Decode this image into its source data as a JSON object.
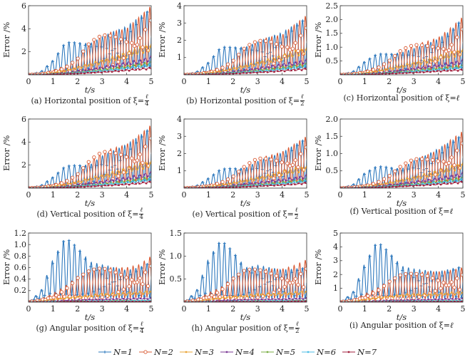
{
  "chart_data": [
    {
      "type": "line",
      "panel": "a",
      "caption": {
        "prefix": "(a) Horizontal position of ξ=",
        "num": "ℓ",
        "den": "4"
      },
      "xlabel": "t/s",
      "ylabel": "Error /%",
      "xlim": [
        0,
        5
      ],
      "ylim": [
        0,
        6
      ],
      "xticks": [
        "0",
        "1",
        "2",
        "3",
        "4",
        "5"
      ],
      "yticks": [
        2,
        4,
        6
      ],
      "x": [
        0,
        0.5,
        1,
        1.5,
        2,
        2.5,
        3,
        3.5,
        4,
        4.5,
        5
      ],
      "series": [
        [
          0,
          0.3,
          1.3,
          2.8,
          2.8,
          2.7,
          3.3,
          3.8,
          4.2,
          5.0,
          5.8
        ],
        [
          0,
          0.1,
          0.4,
          0.8,
          1.5,
          2.8,
          3.5,
          3.8,
          4.0,
          5.0,
          6.0
        ],
        [
          0,
          0.05,
          0.2,
          0.4,
          0.7,
          1.0,
          1.3,
          1.6,
          2.0,
          2.4,
          2.7
        ],
        [
          0,
          0.03,
          0.1,
          0.2,
          0.35,
          0.5,
          0.7,
          0.9,
          1.1,
          1.3,
          1.6
        ],
        [
          0,
          0.02,
          0.07,
          0.15,
          0.25,
          0.35,
          0.5,
          0.6,
          0.8,
          0.95,
          1.15
        ],
        [
          0,
          0.02,
          0.06,
          0.12,
          0.2,
          0.3,
          0.4,
          0.5,
          0.65,
          0.8,
          0.95
        ],
        [
          0,
          0.01,
          0.04,
          0.08,
          0.13,
          0.2,
          0.27,
          0.35,
          0.45,
          0.55,
          0.65
        ]
      ]
    },
    {
      "type": "line",
      "panel": "b",
      "caption": {
        "prefix": "(b) Horizontal position of ξ=",
        "num": "ℓ",
        "den": "2"
      },
      "xlabel": "t/s",
      "ylabel": "Error /%",
      "xlim": [
        0,
        5
      ],
      "ylim": [
        0,
        4
      ],
      "xticks": [
        "0",
        "1",
        "2",
        "3",
        "4",
        "5"
      ],
      "yticks": [
        1,
        2,
        3,
        4
      ],
      "x": [
        0,
        0.5,
        1,
        1.5,
        2,
        2.5,
        3,
        3.5,
        4,
        4.5,
        5
      ],
      "series": [
        [
          0,
          0.18,
          0.75,
          1.6,
          1.6,
          1.6,
          1.9,
          2.2,
          2.45,
          2.9,
          3.3
        ],
        [
          0,
          0.06,
          0.23,
          0.46,
          0.87,
          1.6,
          2.0,
          2.2,
          2.3,
          2.9,
          3.45
        ],
        [
          0,
          0.03,
          0.12,
          0.23,
          0.4,
          0.58,
          0.75,
          0.93,
          1.16,
          1.4,
          1.6
        ],
        [
          0,
          0.02,
          0.06,
          0.12,
          0.2,
          0.29,
          0.4,
          0.52,
          0.64,
          0.75,
          0.9
        ],
        [
          0,
          0.01,
          0.04,
          0.09,
          0.15,
          0.2,
          0.29,
          0.35,
          0.46,
          0.55,
          0.67
        ],
        [
          0,
          0.01,
          0.03,
          0.07,
          0.12,
          0.17,
          0.23,
          0.29,
          0.38,
          0.46,
          0.55
        ],
        [
          0,
          0.01,
          0.02,
          0.05,
          0.08,
          0.12,
          0.16,
          0.2,
          0.26,
          0.32,
          0.38
        ]
      ]
    },
    {
      "type": "line",
      "panel": "c",
      "caption": {
        "prefix": "(c) Horizontal position of ξ=",
        "num": "ℓ",
        "den": ""
      },
      "xlabel": "t/s",
      "ylabel": "Error /%",
      "xlim": [
        0,
        5
      ],
      "ylim": [
        0,
        2.5
      ],
      "xticks": [
        "0",
        "1",
        "2",
        "3",
        "4",
        "5"
      ],
      "yticks": [
        0.5,
        1.0,
        1.5,
        2.0,
        2.5
      ],
      "x": [
        0,
        0.5,
        1,
        1.5,
        2,
        2.5,
        3,
        3.5,
        4,
        4.5,
        5
      ],
      "series": [
        [
          0,
          0.12,
          0.5,
          0.75,
          0.75,
          0.8,
          0.95,
          1.1,
          1.3,
          1.6,
          2.05
        ],
        [
          0,
          0.04,
          0.15,
          0.3,
          0.55,
          0.9,
          1.1,
          1.2,
          1.35,
          1.7,
          2.1
        ],
        [
          0,
          0.02,
          0.07,
          0.15,
          0.25,
          0.35,
          0.45,
          0.55,
          0.7,
          0.82,
          0.95
        ],
        [
          0,
          0.01,
          0.04,
          0.07,
          0.12,
          0.18,
          0.25,
          0.31,
          0.38,
          0.45,
          0.55
        ],
        [
          0,
          0.01,
          0.03,
          0.05,
          0.09,
          0.12,
          0.17,
          0.21,
          0.26,
          0.3,
          0.35
        ],
        [
          0,
          0.01,
          0.02,
          0.04,
          0.07,
          0.1,
          0.14,
          0.18,
          0.22,
          0.26,
          0.3
        ],
        [
          0,
          0.0,
          0.01,
          0.03,
          0.05,
          0.07,
          0.09,
          0.12,
          0.15,
          0.18,
          0.2
        ]
      ]
    },
    {
      "type": "line",
      "panel": "d",
      "caption": {
        "prefix": "(d) Vertical position of ξ=",
        "num": "ℓ",
        "den": "4"
      },
      "xlabel": "t/s",
      "ylabel": "Error /%",
      "xlim": [
        0,
        5
      ],
      "ylim": [
        0,
        6
      ],
      "xticks": [
        "0",
        "1",
        "2",
        "3",
        "4",
        "5"
      ],
      "yticks": [
        2,
        4,
        6
      ],
      "x": [
        0,
        0.5,
        1,
        1.5,
        2,
        2.5,
        3,
        3.5,
        4,
        4.5,
        5
      ],
      "series": [
        [
          0,
          0.25,
          1.0,
          1.9,
          2.0,
          2.0,
          2.8,
          3.3,
          3.8,
          4.5,
          5.3
        ],
        [
          0,
          0.08,
          0.35,
          0.7,
          1.3,
          2.4,
          3.2,
          3.5,
          3.8,
          4.6,
          5.5
        ],
        [
          0,
          0.04,
          0.17,
          0.35,
          0.6,
          0.9,
          1.15,
          1.45,
          1.8,
          2.1,
          2.4
        ],
        [
          0,
          0.03,
          0.09,
          0.18,
          0.3,
          0.45,
          0.6,
          0.8,
          0.95,
          1.15,
          1.4
        ],
        [
          0,
          0.02,
          0.06,
          0.13,
          0.22,
          0.3,
          0.42,
          0.52,
          0.68,
          0.82,
          1.0
        ],
        [
          0,
          0.02,
          0.05,
          0.1,
          0.17,
          0.26,
          0.35,
          0.44,
          0.56,
          0.7,
          0.85
        ],
        [
          0,
          0.01,
          0.03,
          0.07,
          0.11,
          0.17,
          0.23,
          0.3,
          0.38,
          0.47,
          0.6
        ]
      ]
    },
    {
      "type": "line",
      "panel": "e",
      "caption": {
        "prefix": "(e) Vertical position of ξ=",
        "num": "ℓ",
        "den": "2"
      },
      "xlabel": "t/s",
      "ylabel": "Error /%",
      "xlim": [
        0,
        5
      ],
      "ylim": [
        0,
        4
      ],
      "xticks": [
        "0",
        "1",
        "2",
        "3",
        "4",
        "5"
      ],
      "yticks": [
        1,
        2,
        3,
        4
      ],
      "x": [
        0,
        0.5,
        1,
        1.5,
        2,
        2.5,
        3,
        3.5,
        4,
        4.5,
        5
      ],
      "series": [
        [
          0,
          0.15,
          0.6,
          1.1,
          1.15,
          1.15,
          1.55,
          1.8,
          2.05,
          2.5,
          2.9
        ],
        [
          0,
          0.05,
          0.2,
          0.4,
          0.72,
          1.3,
          1.75,
          1.9,
          2.1,
          2.55,
          3.0
        ],
        [
          0,
          0.02,
          0.1,
          0.2,
          0.33,
          0.5,
          0.63,
          0.8,
          1.0,
          1.15,
          1.3
        ],
        [
          0,
          0.02,
          0.05,
          0.1,
          0.17,
          0.25,
          0.33,
          0.44,
          0.52,
          0.63,
          0.77
        ],
        [
          0,
          0.01,
          0.03,
          0.07,
          0.12,
          0.17,
          0.23,
          0.29,
          0.37,
          0.45,
          0.55
        ],
        [
          0,
          0.01,
          0.03,
          0.06,
          0.09,
          0.14,
          0.19,
          0.24,
          0.31,
          0.38,
          0.47
        ],
        [
          0,
          0.01,
          0.02,
          0.04,
          0.06,
          0.09,
          0.13,
          0.17,
          0.21,
          0.26,
          0.33
        ]
      ]
    },
    {
      "type": "line",
      "panel": "f",
      "caption": {
        "prefix": "(f) Vertical position of ξ=",
        "num": "ℓ",
        "den": ""
      },
      "xlabel": "t/s",
      "ylabel": "Error /%",
      "xlim": [
        0,
        5
      ],
      "ylim": [
        0,
        2.0
      ],
      "xticks": [
        "0",
        "1",
        "2",
        "3",
        "4",
        "5"
      ],
      "yticks": [
        0.5,
        1.0,
        1.5,
        2.0
      ],
      "x": [
        0,
        0.5,
        1,
        1.5,
        2,
        2.5,
        3,
        3.5,
        4,
        4.5,
        5
      ],
      "series": [
        [
          0,
          0.1,
          0.45,
          0.63,
          0.6,
          0.55,
          0.8,
          0.95,
          1.15,
          1.35,
          1.55
        ],
        [
          0,
          0.03,
          0.1,
          0.2,
          0.38,
          0.65,
          0.85,
          0.95,
          1.1,
          1.4,
          1.65
        ],
        [
          0,
          0.01,
          0.05,
          0.1,
          0.17,
          0.26,
          0.33,
          0.42,
          0.52,
          0.63,
          0.75
        ],
        [
          0,
          0.01,
          0.03,
          0.06,
          0.1,
          0.14,
          0.19,
          0.24,
          0.3,
          0.37,
          0.45
        ],
        [
          0,
          0.0,
          0.02,
          0.04,
          0.07,
          0.1,
          0.13,
          0.17,
          0.21,
          0.26,
          0.32
        ],
        [
          0,
          0.0,
          0.02,
          0.03,
          0.06,
          0.08,
          0.11,
          0.14,
          0.18,
          0.22,
          0.27
        ],
        [
          0,
          0.0,
          0.01,
          0.02,
          0.04,
          0.06,
          0.08,
          0.1,
          0.13,
          0.16,
          0.2
        ]
      ]
    },
    {
      "type": "line",
      "panel": "g",
      "caption": {
        "prefix": "(g) Angular position of ξ=",
        "num": "ℓ",
        "den": "4"
      },
      "xlabel": "t/s",
      "ylabel": "Error /%",
      "xlim": [
        0,
        5
      ],
      "ylim": [
        0,
        1.2
      ],
      "xticks": [
        "0",
        "1",
        "2",
        "3",
        "4",
        "5"
      ],
      "yticks": [
        0.2,
        0.4,
        0.6,
        0.8,
        1.0,
        1.2
      ],
      "x": [
        0,
        0.5,
        1,
        1.5,
        2,
        2.5,
        3,
        3.5,
        4,
        4.5,
        5
      ],
      "series": [
        [
          0,
          0.2,
          0.75,
          1.12,
          0.95,
          0.7,
          0.65,
          0.6,
          0.55,
          0.6,
          0.7
        ],
        [
          0,
          0.05,
          0.15,
          0.28,
          0.45,
          0.55,
          0.6,
          0.6,
          0.6,
          0.65,
          0.8
        ],
        [
          0,
          0.02,
          0.05,
          0.08,
          0.1,
          0.12,
          0.15,
          0.15,
          0.17,
          0.18,
          0.2
        ],
        [
          0,
          0.01,
          0.02,
          0.03,
          0.04,
          0.05,
          0.05,
          0.06,
          0.06,
          0.07,
          0.07
        ],
        [
          0,
          0.0,
          0.01,
          0.01,
          0.02,
          0.02,
          0.02,
          0.03,
          0.03,
          0.03,
          0.03
        ],
        [
          0,
          0.0,
          0.01,
          0.01,
          0.01,
          0.02,
          0.02,
          0.02,
          0.02,
          0.03,
          0.03
        ],
        [
          0,
          0.0,
          0.0,
          0.01,
          0.01,
          0.01,
          0.01,
          0.01,
          0.01,
          0.01,
          0.01
        ]
      ]
    },
    {
      "type": "line",
      "panel": "h",
      "caption": {
        "prefix": "(h) Angular position of ξ=",
        "num": "ℓ",
        "den": "2"
      },
      "xlabel": "t/s",
      "ylabel": "Error /%",
      "xlim": [
        0,
        5
      ],
      "ylim": [
        0,
        1.5
      ],
      "xticks": [
        "0",
        "1",
        "2",
        "3",
        "4",
        "5"
      ],
      "yticks": [
        0.5,
        1.0,
        1.5
      ],
      "x": [
        0,
        0.5,
        1,
        1.5,
        2,
        2.5,
        3,
        3.5,
        4,
        4.5,
        5
      ],
      "series": [
        [
          0,
          0.25,
          0.95,
          1.35,
          1.1,
          0.75,
          0.8,
          0.75,
          0.7,
          0.72,
          0.75
        ],
        [
          0,
          0.06,
          0.2,
          0.32,
          0.55,
          0.7,
          0.72,
          0.72,
          0.72,
          0.8,
          0.92
        ],
        [
          0,
          0.02,
          0.06,
          0.1,
          0.13,
          0.15,
          0.18,
          0.19,
          0.2,
          0.22,
          0.25
        ],
        [
          0,
          0.01,
          0.02,
          0.04,
          0.05,
          0.06,
          0.06,
          0.07,
          0.07,
          0.08,
          0.09
        ],
        [
          0,
          0.0,
          0.01,
          0.01,
          0.02,
          0.02,
          0.03,
          0.03,
          0.03,
          0.04,
          0.04
        ],
        [
          0,
          0.0,
          0.01,
          0.01,
          0.02,
          0.02,
          0.02,
          0.03,
          0.03,
          0.03,
          0.03
        ],
        [
          0,
          0.0,
          0.0,
          0.01,
          0.01,
          0.01,
          0.01,
          0.01,
          0.01,
          0.02,
          0.02
        ]
      ]
    },
    {
      "type": "line",
      "panel": "i",
      "caption": {
        "prefix": "(i) Angular position of ξ=",
        "num": "ℓ",
        "den": ""
      },
      "xlabel": "t/s",
      "ylabel": "Error /%",
      "xlim": [
        0,
        5
      ],
      "ylim": [
        0,
        5
      ],
      "xticks": [
        "0",
        "1",
        "2",
        "3",
        "4",
        "5"
      ],
      "yticks": [
        1,
        2,
        3,
        4,
        5
      ],
      "x": [
        0,
        0.5,
        1,
        1.5,
        2,
        2.5,
        3,
        3.5,
        4,
        4.5,
        5
      ],
      "series": [
        [
          0,
          0.7,
          2.8,
          4.4,
          3.6,
          2.6,
          2.4,
          2.3,
          2.2,
          2.4,
          2.6
        ],
        [
          0,
          0.15,
          0.6,
          1.0,
          1.6,
          2.0,
          2.1,
          2.2,
          2.2,
          2.3,
          2.5
        ],
        [
          0,
          0.05,
          0.2,
          0.35,
          0.45,
          0.55,
          0.6,
          0.62,
          0.65,
          0.7,
          0.75
        ],
        [
          0,
          0.02,
          0.06,
          0.1,
          0.14,
          0.16,
          0.18,
          0.2,
          0.22,
          0.25,
          0.28
        ],
        [
          0,
          0.01,
          0.03,
          0.05,
          0.06,
          0.07,
          0.08,
          0.09,
          0.1,
          0.11,
          0.12
        ],
        [
          0,
          0.01,
          0.02,
          0.04,
          0.05,
          0.06,
          0.07,
          0.08,
          0.09,
          0.1,
          0.11
        ],
        [
          0,
          0.0,
          0.01,
          0.02,
          0.02,
          0.03,
          0.03,
          0.03,
          0.04,
          0.04,
          0.05
        ]
      ]
    }
  ],
  "legend": [
    {
      "label": "N=1",
      "color": "#2e78bd",
      "marker": "plus"
    },
    {
      "label": "N=2",
      "color": "#d95b35",
      "marker": "circle"
    },
    {
      "label": "N=3",
      "color": "#eaa436",
      "marker": "square"
    },
    {
      "label": "N=4",
      "color": "#7b3996",
      "marker": "square"
    },
    {
      "label": "N=5",
      "color": "#78ad43",
      "marker": "square"
    },
    {
      "label": "N=6",
      "color": "#4cbde6",
      "marker": "square"
    },
    {
      "label": "N=7",
      "color": "#a11e3c",
      "marker": "star"
    }
  ]
}
